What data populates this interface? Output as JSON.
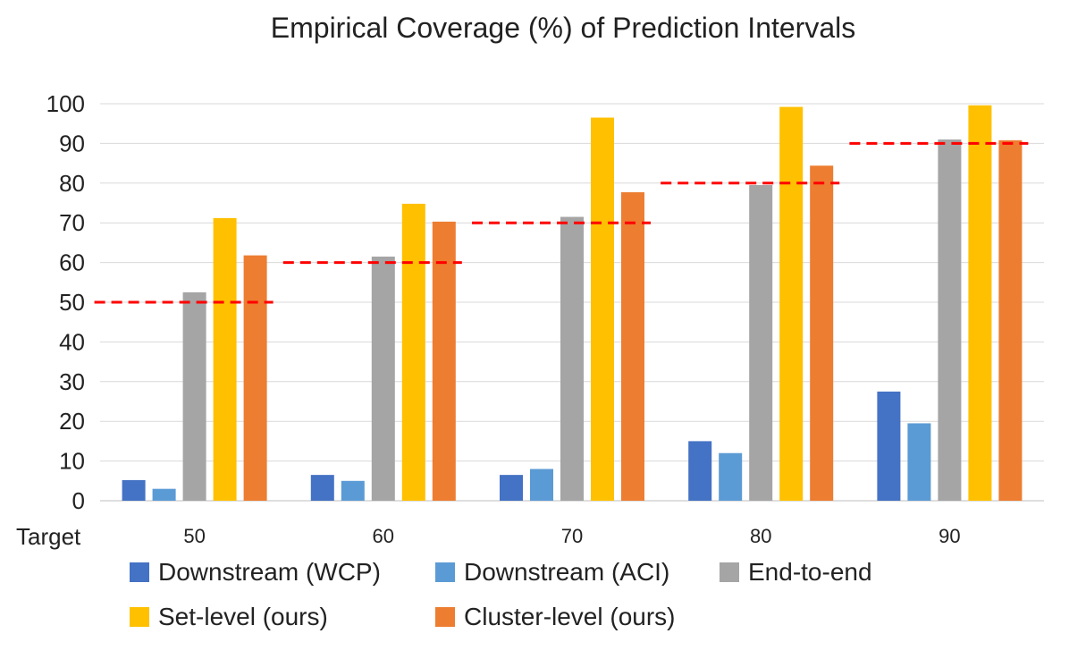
{
  "chart_data": {
    "type": "bar",
    "title": "Empirical Coverage (%) of Prediction Intervals",
    "xlabel": "Target",
    "ylabel": "",
    "categories": [
      "50",
      "60",
      "70",
      "80",
      "90"
    ],
    "ylim": [
      0,
      100
    ],
    "yticks": [
      "0",
      "10",
      "20",
      "30",
      "40",
      "50",
      "60",
      "70",
      "80",
      "90",
      "100"
    ],
    "grid": true,
    "legend_position": "bottom",
    "series": [
      {
        "name": "Downstream (WCP)",
        "color": "#4472C4",
        "values": [
          5.2,
          6.5,
          6.5,
          15.0,
          27.5
        ]
      },
      {
        "name": "Downstream (ACI)",
        "color": "#5B9BD5",
        "values": [
          3.0,
          5.0,
          8.0,
          12.0,
          19.5
        ]
      },
      {
        "name": "End-to-end",
        "color": "#A5A5A5",
        "values": [
          52.5,
          61.5,
          71.5,
          79.5,
          91.0
        ]
      },
      {
        "name": "Set-level (ours)",
        "color": "#FFC000",
        "values": [
          71.2,
          74.8,
          96.5,
          99.2,
          99.6
        ]
      },
      {
        "name": "Cluster-level (ours)",
        "color": "#ED7D31",
        "values": [
          61.8,
          70.3,
          77.7,
          84.4,
          90.8
        ]
      }
    ],
    "target_lines": {
      "color": "#FF0000",
      "style": "dashed",
      "values": [
        50,
        60,
        70,
        80,
        90
      ]
    }
  }
}
